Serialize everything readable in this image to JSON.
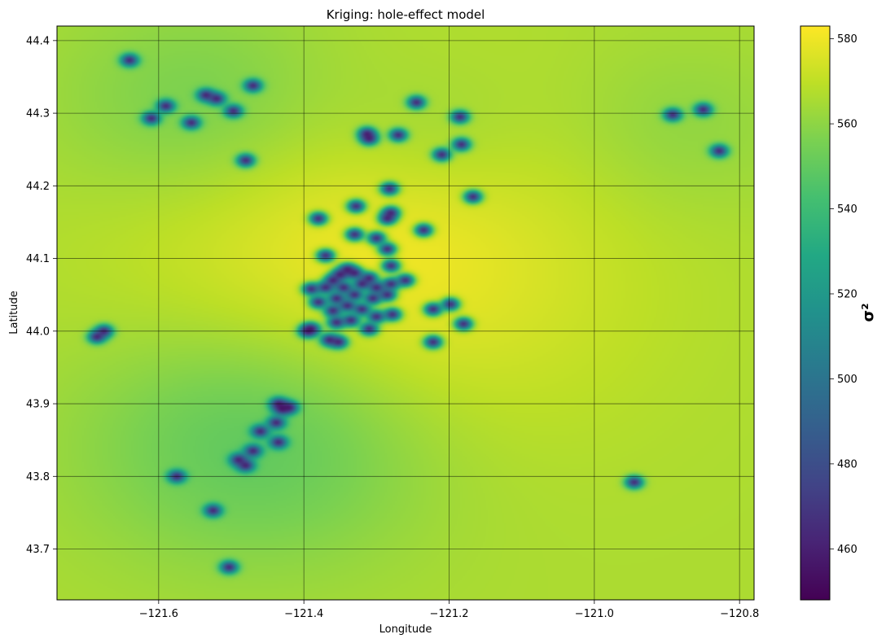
{
  "chart_data": {
    "type": "heatmap",
    "title": "Kriging: hole-effect model",
    "xlabel": "Longitude",
    "ylabel": "Latitude",
    "xlim": [
      -121.74,
      -120.78
    ],
    "ylim": [
      43.63,
      44.42
    ],
    "xticks": [
      -121.6,
      -121.4,
      -121.2,
      -121.0,
      -120.8
    ],
    "xtick_labels": [
      "−121.6",
      "−121.4",
      "−121.2",
      "−121.0",
      "−120.8"
    ],
    "yticks": [
      43.7,
      43.8,
      43.9,
      44.0,
      44.1,
      44.2,
      44.3,
      44.4
    ],
    "ytick_labels": [
      "43.7",
      "43.8",
      "43.9",
      "44.0",
      "44.1",
      "44.2",
      "44.3",
      "44.4"
    ],
    "grid": true,
    "colormap": "viridis",
    "colorbar": {
      "label": "σ²",
      "range": [
        448,
        583
      ],
      "ticks": [
        460,
        480,
        500,
        520,
        540,
        560,
        580
      ],
      "tick_labels": [
        "460",
        "480",
        "500",
        "520",
        "540",
        "560",
        "580"
      ]
    },
    "background_variance": 566,
    "broad_features": [
      {
        "lon": -121.31,
        "lat": 44.08,
        "delta": 16,
        "radius_deg": 0.16
      },
      {
        "lon": -121.46,
        "lat": 43.86,
        "delta": -20,
        "radius_deg": 0.12
      },
      {
        "lon": -121.54,
        "lat": 44.31,
        "delta": -12,
        "radius_deg": 0.1
      },
      {
        "lon": -121.22,
        "lat": 44.27,
        "delta": -6,
        "radius_deg": 0.07
      },
      {
        "lon": -120.88,
        "lat": 44.28,
        "delta": -6,
        "radius_deg": 0.08
      }
    ],
    "sample_points": [
      {
        "lon": -121.64,
        "lat": 44.373
      },
      {
        "lon": -121.47,
        "lat": 44.338
      },
      {
        "lon": -121.535,
        "lat": 44.325
      },
      {
        "lon": -121.52,
        "lat": 44.32
      },
      {
        "lon": -121.59,
        "lat": 44.31
      },
      {
        "lon": -121.497,
        "lat": 44.303
      },
      {
        "lon": -121.61,
        "lat": 44.293
      },
      {
        "lon": -121.555,
        "lat": 44.287
      },
      {
        "lon": -121.48,
        "lat": 44.235
      },
      {
        "lon": -121.245,
        "lat": 44.315
      },
      {
        "lon": -121.185,
        "lat": 44.295
      },
      {
        "lon": -121.313,
        "lat": 44.272
      },
      {
        "lon": -121.31,
        "lat": 44.265
      },
      {
        "lon": -121.27,
        "lat": 44.27
      },
      {
        "lon": -121.183,
        "lat": 44.257
      },
      {
        "lon": -121.21,
        "lat": 44.243
      },
      {
        "lon": -121.167,
        "lat": 44.185
      },
      {
        "lon": -121.282,
        "lat": 44.196
      },
      {
        "lon": -121.28,
        "lat": 44.163
      },
      {
        "lon": -121.285,
        "lat": 44.155
      },
      {
        "lon": -121.328,
        "lat": 44.172
      },
      {
        "lon": -121.38,
        "lat": 44.155
      },
      {
        "lon": -121.235,
        "lat": 44.139
      },
      {
        "lon": -121.33,
        "lat": 44.133
      },
      {
        "lon": -121.3,
        "lat": 44.128
      },
      {
        "lon": -121.285,
        "lat": 44.113
      },
      {
        "lon": -121.37,
        "lat": 44.104
      },
      {
        "lon": -121.28,
        "lat": 44.09
      },
      {
        "lon": -121.34,
        "lat": 44.085
      },
      {
        "lon": -121.33,
        "lat": 44.08
      },
      {
        "lon": -121.35,
        "lat": 44.078
      },
      {
        "lon": -121.31,
        "lat": 44.073
      },
      {
        "lon": -121.36,
        "lat": 44.07
      },
      {
        "lon": -121.32,
        "lat": 44.065
      },
      {
        "lon": -121.345,
        "lat": 44.06
      },
      {
        "lon": -121.3,
        "lat": 44.06
      },
      {
        "lon": -121.28,
        "lat": 44.065
      },
      {
        "lon": -121.26,
        "lat": 44.07
      },
      {
        "lon": -121.37,
        "lat": 44.06
      },
      {
        "lon": -121.39,
        "lat": 44.058
      },
      {
        "lon": -121.33,
        "lat": 44.05
      },
      {
        "lon": -121.355,
        "lat": 44.045
      },
      {
        "lon": -121.305,
        "lat": 44.045
      },
      {
        "lon": -121.285,
        "lat": 44.05
      },
      {
        "lon": -121.38,
        "lat": 44.04
      },
      {
        "lon": -121.34,
        "lat": 44.035
      },
      {
        "lon": -121.32,
        "lat": 44.03
      },
      {
        "lon": -121.36,
        "lat": 44.028
      },
      {
        "lon": -121.3,
        "lat": 44.02
      },
      {
        "lon": -121.335,
        "lat": 44.015
      },
      {
        "lon": -121.355,
        "lat": 44.012
      },
      {
        "lon": -121.31,
        "lat": 44.003
      },
      {
        "lon": -121.278,
        "lat": 44.023
      },
      {
        "lon": -121.395,
        "lat": 44.0
      },
      {
        "lon": -121.39,
        "lat": 44.003
      },
      {
        "lon": -121.365,
        "lat": 43.988
      },
      {
        "lon": -121.352,
        "lat": 43.985
      },
      {
        "lon": -121.222,
        "lat": 44.03
      },
      {
        "lon": -121.198,
        "lat": 44.037
      },
      {
        "lon": -121.18,
        "lat": 44.01
      },
      {
        "lon": -121.222,
        "lat": 43.985
      },
      {
        "lon": -121.675,
        "lat": 44.0
      },
      {
        "lon": -121.685,
        "lat": 43.992
      },
      {
        "lon": -121.435,
        "lat": 43.9
      },
      {
        "lon": -121.42,
        "lat": 43.895
      },
      {
        "lon": -121.43,
        "lat": 43.893
      },
      {
        "lon": -121.46,
        "lat": 43.862
      },
      {
        "lon": -121.438,
        "lat": 43.874
      },
      {
        "lon": -121.435,
        "lat": 43.847
      },
      {
        "lon": -121.47,
        "lat": 43.835
      },
      {
        "lon": -121.49,
        "lat": 43.823
      },
      {
        "lon": -121.48,
        "lat": 43.815
      },
      {
        "lon": -121.575,
        "lat": 43.8
      },
      {
        "lon": -121.525,
        "lat": 43.753
      },
      {
        "lon": -121.503,
        "lat": 43.675
      },
      {
        "lon": -120.892,
        "lat": 44.298
      },
      {
        "lon": -120.85,
        "lat": 44.305
      },
      {
        "lon": -120.828,
        "lat": 44.248
      },
      {
        "lon": -120.945,
        "lat": 43.792
      }
    ]
  }
}
